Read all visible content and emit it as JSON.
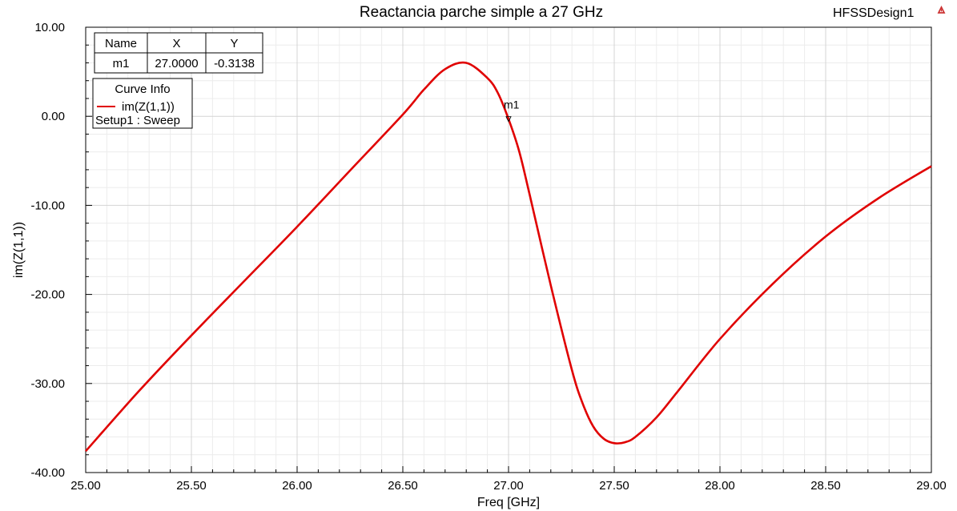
{
  "header": {
    "design_name": "HFSSDesign1",
    "design_icon": "ansys-triangle-icon"
  },
  "chart_data": {
    "type": "line",
    "title": "Reactancia parche simple a 27 GHz",
    "xlabel": "Freq [GHz]",
    "ylabel": "im(Z(1,1))",
    "xlim": [
      25.0,
      29.0
    ],
    "ylim": [
      -40.0,
      10.0
    ],
    "x_ticks": [
      25.0,
      25.5,
      26.0,
      26.5,
      27.0,
      27.5,
      28.0,
      28.5,
      29.0
    ],
    "x_tick_labels": [
      "25.00",
      "25.50",
      "26.00",
      "26.50",
      "27.00",
      "27.50",
      "28.00",
      "28.50",
      "29.00"
    ],
    "y_ticks": [
      10,
      0,
      -10,
      -20,
      -30,
      -40
    ],
    "y_tick_labels": [
      "10.00",
      "0.00",
      "-10.00",
      "-20.00",
      "-30.00",
      "-40.00"
    ],
    "grid": true,
    "series": [
      {
        "name": "im(Z(1,1))",
        "color": "#e00000",
        "x": [
          25.0,
          25.25,
          25.5,
          25.75,
          26.0,
          26.25,
          26.5,
          26.6,
          26.7,
          26.8,
          26.9,
          26.95,
          27.0,
          27.05,
          27.1,
          27.2,
          27.3,
          27.35,
          27.4,
          27.45,
          27.5,
          27.55,
          27.6,
          27.7,
          27.8,
          28.0,
          28.25,
          28.5,
          28.75,
          29.0
        ],
        "y": [
          -37.6,
          -30.9,
          -24.6,
          -18.5,
          -12.4,
          -6.1,
          0.2,
          3.0,
          5.3,
          6.0,
          4.3,
          2.6,
          -0.31,
          -3.9,
          -8.8,
          -19.0,
          -28.5,
          -32.2,
          -34.8,
          -36.2,
          -36.7,
          -36.6,
          -36.0,
          -33.8,
          -30.9,
          -25.0,
          -18.8,
          -13.5,
          -9.2,
          -5.6
        ]
      }
    ],
    "legend": {
      "position": "top-left",
      "header": "Curve Info",
      "entries": [
        {
          "name": "im(Z(1,1))",
          "color": "#e00000",
          "subtitle": "Setup1 : Sweep"
        }
      ]
    },
    "marker_table": {
      "position": "top-left",
      "columns": [
        "Name",
        "X",
        "Y"
      ],
      "rows": [
        [
          "m1",
          "27.0000",
          "-0.3138"
        ]
      ]
    },
    "markers": [
      {
        "name": "m1",
        "x": 27.0,
        "y": -0.3138
      }
    ]
  }
}
